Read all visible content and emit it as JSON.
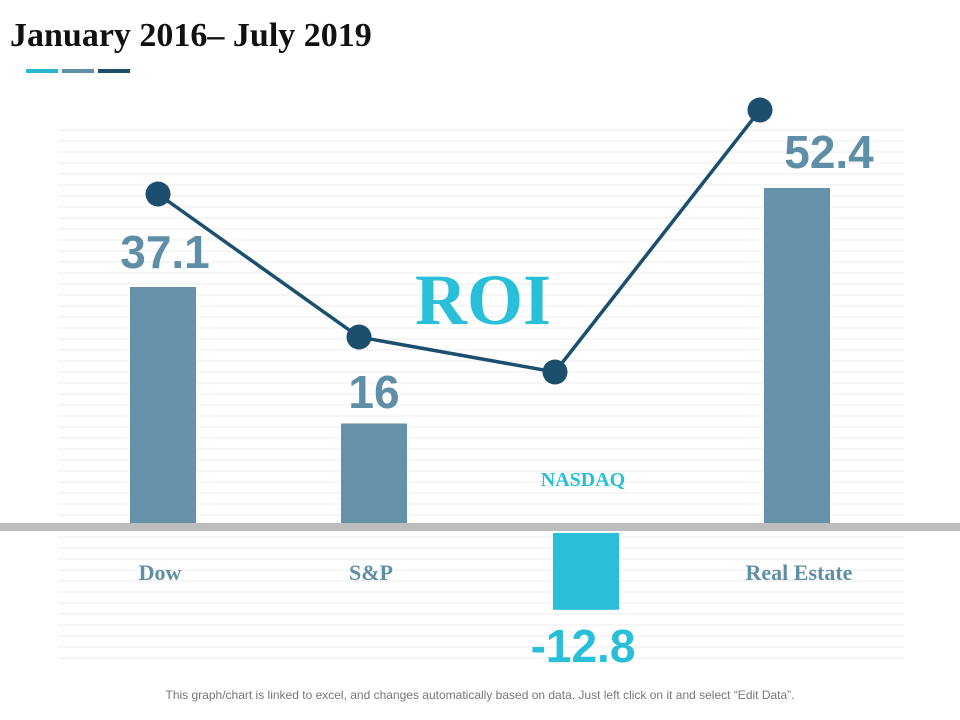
{
  "page": {
    "title": "January 2016– July 2019",
    "footnote": "This graph/chart is linked to excel, and changes automatically based on data. Just left click on it and select “Edit Data”."
  },
  "colors": {
    "accent_1": "#2ab5d3",
    "accent_2": "#5e8fa6",
    "accent_3": "#1c4f6e",
    "bar": "#6592a9",
    "bar_negative": "#29bfd9",
    "line": "#1c4f6e",
    "value_label": "#5e8fa6",
    "negative_label": "#29bfd9",
    "category_label": "#5e8fa6",
    "overlay_text": "#29bfd9",
    "axis": "#bdbdbd"
  },
  "chart_data": {
    "type": "bar",
    "title": "ROI",
    "xlabel": "",
    "ylabel": "",
    "categories": [
      "Dow",
      "S&P",
      "NASDAQ",
      "Real Estate"
    ],
    "values": [
      37.1,
      16,
      -12.8,
      52.4
    ],
    "value_labels": [
      "37.1",
      "16",
      "-12.8",
      "52.4"
    ],
    "ylim": [
      -20,
      60
    ],
    "grid": true,
    "legend": "none",
    "overlay_line": {
      "type": "line",
      "values": [
        37.1,
        16,
        11,
        52.4
      ],
      "marker": "circle"
    }
  }
}
